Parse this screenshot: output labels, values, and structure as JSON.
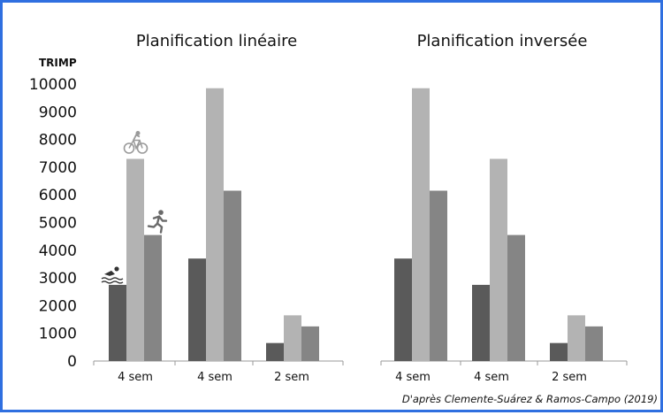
{
  "chart_data": {
    "type": "bar",
    "ylabel": "TRIMP",
    "ylim": [
      0,
      10000
    ],
    "yticks": [
      "0",
      "1000",
      "2000",
      "3000",
      "4000",
      "5000",
      "6000",
      "7000",
      "8000",
      "9000",
      "10000"
    ],
    "series_icons": [
      "swim-icon",
      "bike-icon",
      "run-icon"
    ],
    "series_colors": [
      "#5a5a5a",
      "#b3b3b3",
      "#858585"
    ],
    "source": "D'après Clemente-Suárez & Ramos-Campo (2019)",
    "panels": [
      {
        "title": "Planification linéaire",
        "categories": [
          "4 sem",
          "4 sem",
          "2 sem"
        ],
        "values": [
          [
            2750,
            7300,
            4550
          ],
          [
            3700,
            9850,
            6150
          ],
          [
            650,
            1650,
            1250
          ]
        ]
      },
      {
        "title": "Planification inversée",
        "categories": [
          "4 sem",
          "4 sem",
          "2 sem"
        ],
        "values": [
          [
            3700,
            9850,
            6150
          ],
          [
            2750,
            7300,
            4550
          ],
          [
            650,
            1650,
            1250
          ]
        ]
      }
    ]
  }
}
